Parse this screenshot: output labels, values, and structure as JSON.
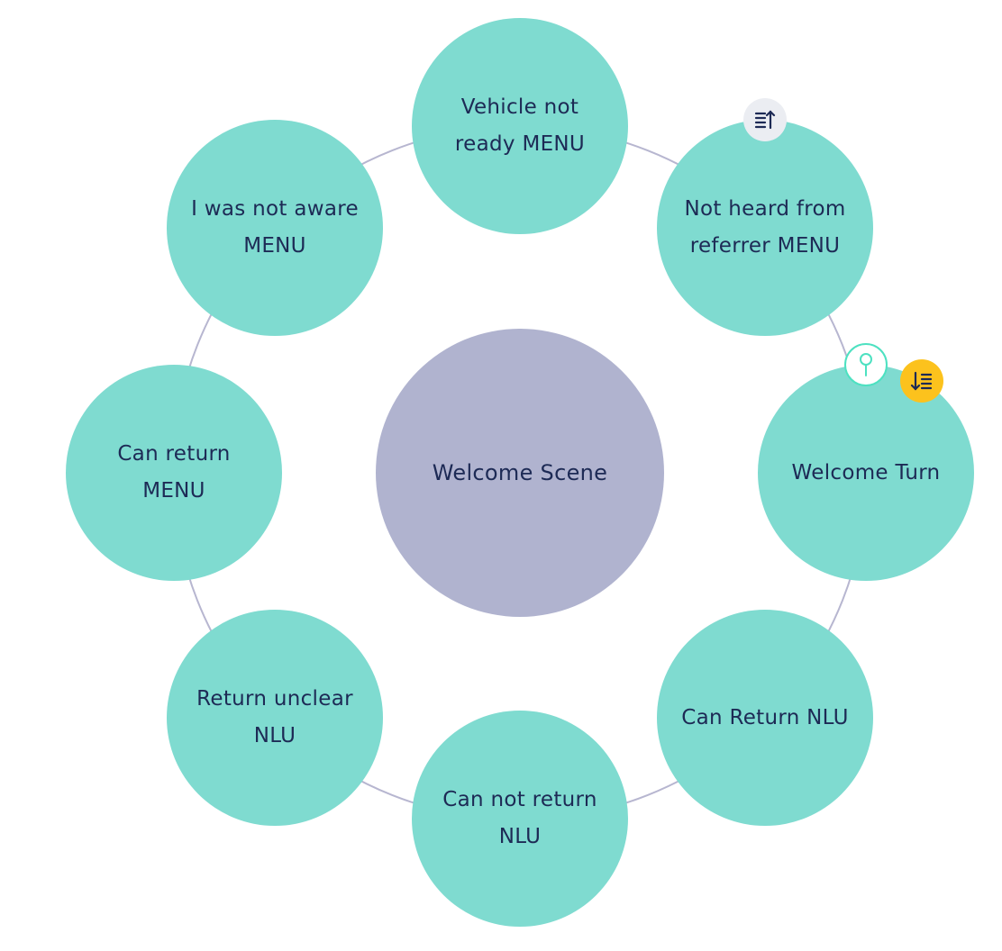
{
  "center": {
    "label": "Welcome Scene",
    "color": "#b0b3cf"
  },
  "turns": [
    {
      "id": "vehicle-not-ready",
      "label": "Vehicle not\nready MENU"
    },
    {
      "id": "not-heard-from-referrer",
      "label": "Not heard from\nreferrer MENU"
    },
    {
      "id": "welcome-turn",
      "label": "Welcome Turn"
    },
    {
      "id": "can-return-nlu",
      "label": "Can Return NLU"
    },
    {
      "id": "can-not-return-nlu",
      "label": "Can not return\nNLU"
    },
    {
      "id": "return-unclear-nlu",
      "label": "Return unclear\nNLU"
    },
    {
      "id": "can-return-menu",
      "label": "Can return\nMENU"
    },
    {
      "id": "i-was-not-aware-menu",
      "label": "I was not aware\nMENU"
    }
  ],
  "badges": {
    "starting_turn": {
      "icon": "sort-ascending-icon",
      "color": "#ebedf2"
    },
    "ending_turn": {
      "icon": "sort-descending-icon",
      "color": "#fcc21d"
    },
    "pinned_turn": {
      "icon": "pin-icon",
      "color": "#4de1c1"
    }
  },
  "colors": {
    "turn_fill": "#7fdbd0",
    "ring_stroke": "#b7b6d0",
    "label_text": "#1d2a55",
    "icon_dark": "#1d2a55"
  }
}
